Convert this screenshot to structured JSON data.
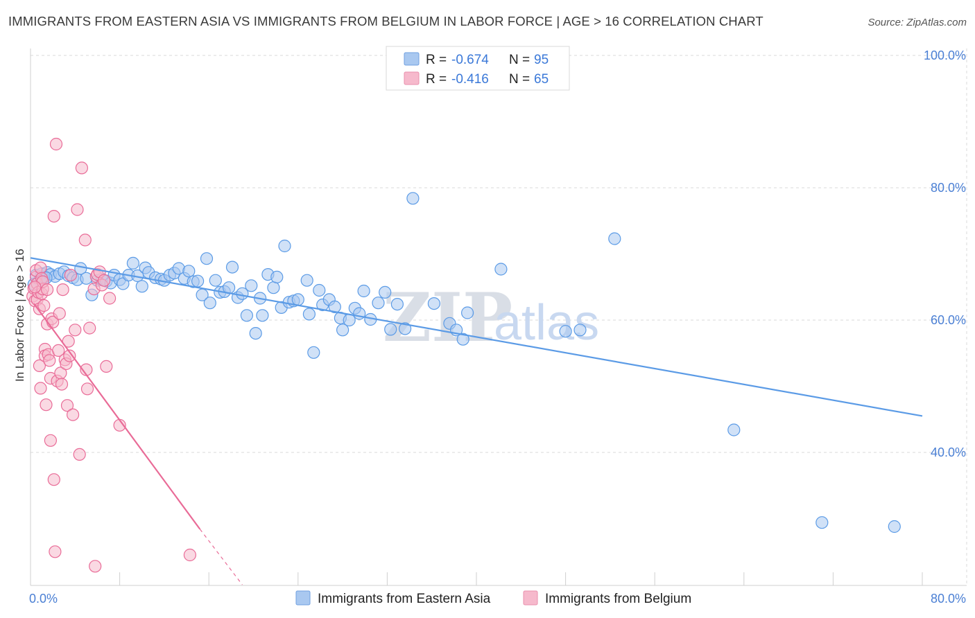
{
  "header": {
    "title": "IMMIGRANTS FROM EASTERN ASIA VS IMMIGRANTS FROM BELGIUM IN LABOR FORCE | AGE > 16 CORRELATION CHART",
    "source": "Source: ZipAtlas.com"
  },
  "watermark": {
    "zip": "ZIP",
    "atlas": "atlas"
  },
  "legend_top": {
    "rows": [
      {
        "r_label": "R =",
        "r_value": "-0.674",
        "n_label": "N =",
        "n_value": "95",
        "color": "#a9c8f0"
      },
      {
        "r_label": "R =",
        "r_value": "-0.416",
        "n_label": "N =",
        "n_value": "65",
        "color": "#f6b9cc"
      }
    ]
  },
  "legend_bottom": {
    "items": [
      {
        "label": "Immigrants from Eastern Asia",
        "color": "#a9c8f0"
      },
      {
        "label": "Immigrants from Belgium",
        "color": "#f6b9cc"
      }
    ]
  },
  "chart_data": {
    "type": "scatter",
    "title": "IMMIGRANTS FROM EASTERN ASIA VS IMMIGRANTS FROM BELGIUM IN LABOR FORCE | AGE > 16 CORRELATION CHART",
    "xlabel": "",
    "ylabel": "In Labor Force | Age > 16",
    "xlim": [
      0,
      80
    ],
    "ylim": [
      20,
      104
    ],
    "x_tick_labels": [
      {
        "value": 0,
        "label": "0.0%"
      },
      {
        "value": 80,
        "label": "80.0%"
      }
    ],
    "y_tick_labels": [
      {
        "value": 100,
        "label": "100.0%"
      },
      {
        "value": 80,
        "label": "80.0%"
      },
      {
        "value": 60,
        "label": "60.0%"
      },
      {
        "value": 40,
        "label": "40.0%"
      }
    ],
    "grid": true,
    "legend_position": "top-center",
    "series": [
      {
        "name": "Immigrants from Eastern Asia",
        "color": "#5b9be6",
        "fill": "#a9c8f0",
        "trend": {
          "x0": 0,
          "y0": 69.4,
          "x1": 80,
          "y1": 45.5
        },
        "points": [
          [
            0.5,
            66.8
          ],
          [
            0.8,
            66.0
          ],
          [
            1.0,
            67.0
          ],
          [
            1.2,
            66.5
          ],
          [
            1.5,
            67.2
          ],
          [
            1.8,
            66.9
          ],
          [
            2.2,
            66.6
          ],
          [
            2.6,
            67.0
          ],
          [
            3.0,
            67.3
          ],
          [
            3.4,
            66.7
          ],
          [
            3.8,
            66.4
          ],
          [
            4.2,
            66.1
          ],
          [
            4.5,
            67.8
          ],
          [
            5.0,
            66.3
          ],
          [
            5.5,
            63.8
          ],
          [
            6.0,
            66.0
          ],
          [
            6.4,
            66.2
          ],
          [
            6.8,
            65.9
          ],
          [
            7.2,
            65.6
          ],
          [
            7.5,
            66.8
          ],
          [
            8.0,
            66.1
          ],
          [
            8.3,
            65.5
          ],
          [
            8.8,
            66.8
          ],
          [
            9.2,
            68.6
          ],
          [
            9.6,
            66.7
          ],
          [
            10.0,
            65.1
          ],
          [
            10.3,
            67.9
          ],
          [
            10.6,
            67.2
          ],
          [
            11.2,
            66.4
          ],
          [
            11.7,
            66.2
          ],
          [
            12.0,
            66.0
          ],
          [
            12.5,
            66.8
          ],
          [
            12.9,
            67.1
          ],
          [
            13.3,
            67.8
          ],
          [
            13.8,
            66.3
          ],
          [
            14.2,
            67.4
          ],
          [
            14.6,
            65.8
          ],
          [
            15.0,
            65.9
          ],
          [
            15.4,
            63.8
          ],
          [
            15.8,
            69.3
          ],
          [
            16.1,
            62.6
          ],
          [
            16.6,
            66.0
          ],
          [
            17.0,
            64.2
          ],
          [
            17.4,
            64.3
          ],
          [
            17.8,
            64.9
          ],
          [
            18.1,
            68.0
          ],
          [
            18.6,
            63.4
          ],
          [
            19.0,
            64.0
          ],
          [
            19.4,
            60.7
          ],
          [
            19.8,
            65.2
          ],
          [
            20.2,
            58.0
          ],
          [
            20.6,
            63.3
          ],
          [
            20.8,
            60.7
          ],
          [
            21.3,
            66.9
          ],
          [
            21.8,
            64.9
          ],
          [
            22.1,
            66.5
          ],
          [
            22.5,
            61.9
          ],
          [
            22.8,
            71.2
          ],
          [
            23.2,
            62.7
          ],
          [
            23.6,
            62.9
          ],
          [
            24.0,
            63.1
          ],
          [
            24.8,
            66.0
          ],
          [
            25.0,
            60.9
          ],
          [
            25.4,
            55.1
          ],
          [
            25.9,
            64.5
          ],
          [
            26.2,
            62.3
          ],
          [
            26.8,
            63.1
          ],
          [
            27.3,
            62.0
          ],
          [
            27.8,
            60.3
          ],
          [
            28.0,
            58.5
          ],
          [
            28.6,
            60.0
          ],
          [
            29.1,
            61.8
          ],
          [
            29.5,
            61.0
          ],
          [
            29.9,
            64.4
          ],
          [
            30.5,
            60.1
          ],
          [
            31.2,
            62.6
          ],
          [
            31.8,
            64.2
          ],
          [
            32.3,
            58.6
          ],
          [
            32.9,
            62.4
          ],
          [
            33.6,
            58.7
          ],
          [
            34.3,
            78.4
          ],
          [
            36.2,
            62.5
          ],
          [
            37.6,
            59.5
          ],
          [
            38.2,
            58.5
          ],
          [
            38.8,
            57.1
          ],
          [
            39.2,
            61.1
          ],
          [
            42.2,
            67.7
          ],
          [
            48.0,
            58.3
          ],
          [
            49.3,
            58.5
          ],
          [
            52.4,
            72.3
          ],
          [
            63.1,
            43.4
          ],
          [
            71.0,
            29.4
          ],
          [
            77.5,
            28.8
          ],
          [
            0.3,
            65.4
          ],
          [
            1.4,
            66.4
          ]
        ]
      },
      {
        "name": "Immigrants from Belgium",
        "color": "#e96b97",
        "fill": "#f6b9cc",
        "trend": {
          "x0": 0.3,
          "y0": 62.5,
          "x1": 15.2,
          "y1": 28.4
        },
        "trend_dashed": {
          "x0": 15.2,
          "y0": 28.4,
          "x1": 19.0,
          "y1": 20.0
        },
        "points": [
          [
            0.2,
            63.6
          ],
          [
            0.3,
            64.8
          ],
          [
            0.4,
            62.9
          ],
          [
            0.5,
            66.5
          ],
          [
            0.5,
            67.5
          ],
          [
            0.6,
            65.5
          ],
          [
            0.6,
            63.1
          ],
          [
            0.7,
            64.2
          ],
          [
            0.8,
            61.7
          ],
          [
            0.8,
            53.1
          ],
          [
            0.9,
            67.9
          ],
          [
            0.9,
            49.7
          ],
          [
            1.0,
            66.3
          ],
          [
            1.0,
            64.0
          ],
          [
            1.1,
            64.7
          ],
          [
            1.1,
            65.8
          ],
          [
            1.2,
            62.2
          ],
          [
            1.3,
            55.6
          ],
          [
            1.3,
            54.6
          ],
          [
            1.4,
            47.2
          ],
          [
            1.5,
            64.6
          ],
          [
            1.5,
            59.4
          ],
          [
            1.6,
            54.8
          ],
          [
            1.7,
            53.9
          ],
          [
            1.8,
            51.2
          ],
          [
            1.8,
            41.8
          ],
          [
            1.9,
            60.2
          ],
          [
            2.0,
            59.7
          ],
          [
            2.1,
            75.7
          ],
          [
            2.1,
            35.9
          ],
          [
            2.2,
            25.0
          ],
          [
            2.3,
            86.6
          ],
          [
            2.4,
            50.8
          ],
          [
            2.5,
            55.4
          ],
          [
            2.6,
            61.0
          ],
          [
            2.7,
            52.0
          ],
          [
            2.8,
            50.3
          ],
          [
            2.9,
            64.6
          ],
          [
            3.1,
            54.0
          ],
          [
            3.2,
            53.4
          ],
          [
            3.3,
            47.1
          ],
          [
            3.4,
            56.8
          ],
          [
            3.5,
            54.6
          ],
          [
            3.6,
            66.8
          ],
          [
            3.8,
            45.7
          ],
          [
            4.0,
            58.5
          ],
          [
            4.2,
            76.7
          ],
          [
            4.4,
            39.7
          ],
          [
            4.6,
            83.0
          ],
          [
            4.9,
            72.1
          ],
          [
            5.0,
            52.5
          ],
          [
            5.1,
            49.6
          ],
          [
            5.3,
            58.8
          ],
          [
            5.7,
            64.7
          ],
          [
            5.9,
            66.6
          ],
          [
            6.0,
            66.9
          ],
          [
            6.2,
            67.3
          ],
          [
            6.4,
            65.3
          ],
          [
            6.6,
            66.0
          ],
          [
            6.8,
            53.0
          ],
          [
            7.1,
            63.3
          ],
          [
            8.0,
            44.1
          ],
          [
            5.8,
            22.8
          ],
          [
            14.3,
            24.5
          ],
          [
            0.4,
            65.0
          ]
        ]
      }
    ]
  }
}
